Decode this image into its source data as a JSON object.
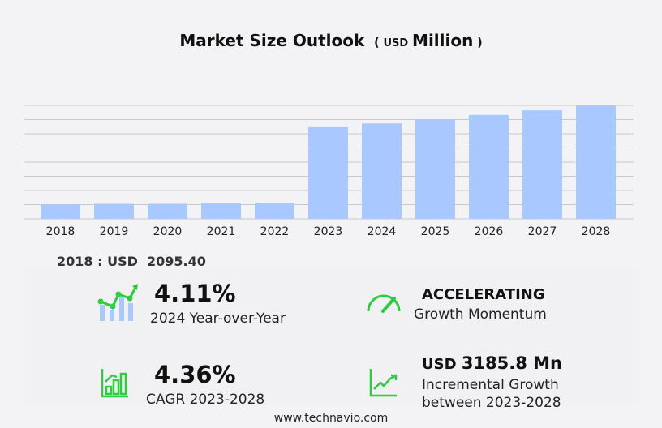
{
  "chart_data": {
    "type": "bar",
    "title": "Market Size Outlook",
    "unit_label": "USD",
    "unit_suffix": "Million",
    "categories": [
      "2018",
      "2019",
      "2020",
      "2021",
      "2022",
      "2023",
      "2024",
      "2025",
      "2026",
      "2027",
      "2028"
    ],
    "values": [
      2095.4,
      2180,
      2185,
      2290,
      2300,
      13385.7,
      13935.9,
      14540,
      15175,
      15840,
      16571.5
    ],
    "ylim": [
      0,
      16571.5
    ],
    "grid": true,
    "bar_color": "#a8c8ff"
  },
  "base_year": {
    "label": "2018 : USD",
    "value": "2095.40"
  },
  "stats": {
    "yoy": {
      "value": "4.11%",
      "label": "2024 Year-over-Year"
    },
    "momentum": {
      "value": "ACCELERATING",
      "label": "Growth Momentum"
    },
    "cagr": {
      "value": "4.36%",
      "label": "CAGR 2023-2028"
    },
    "incremental": {
      "prefix": "USD",
      "value": "3185.8 Mn",
      "label1": "Incremental Growth",
      "label2": "between 2023-2028"
    }
  },
  "accent_color": "#2ecc40",
  "footer": "www.technavio.com"
}
